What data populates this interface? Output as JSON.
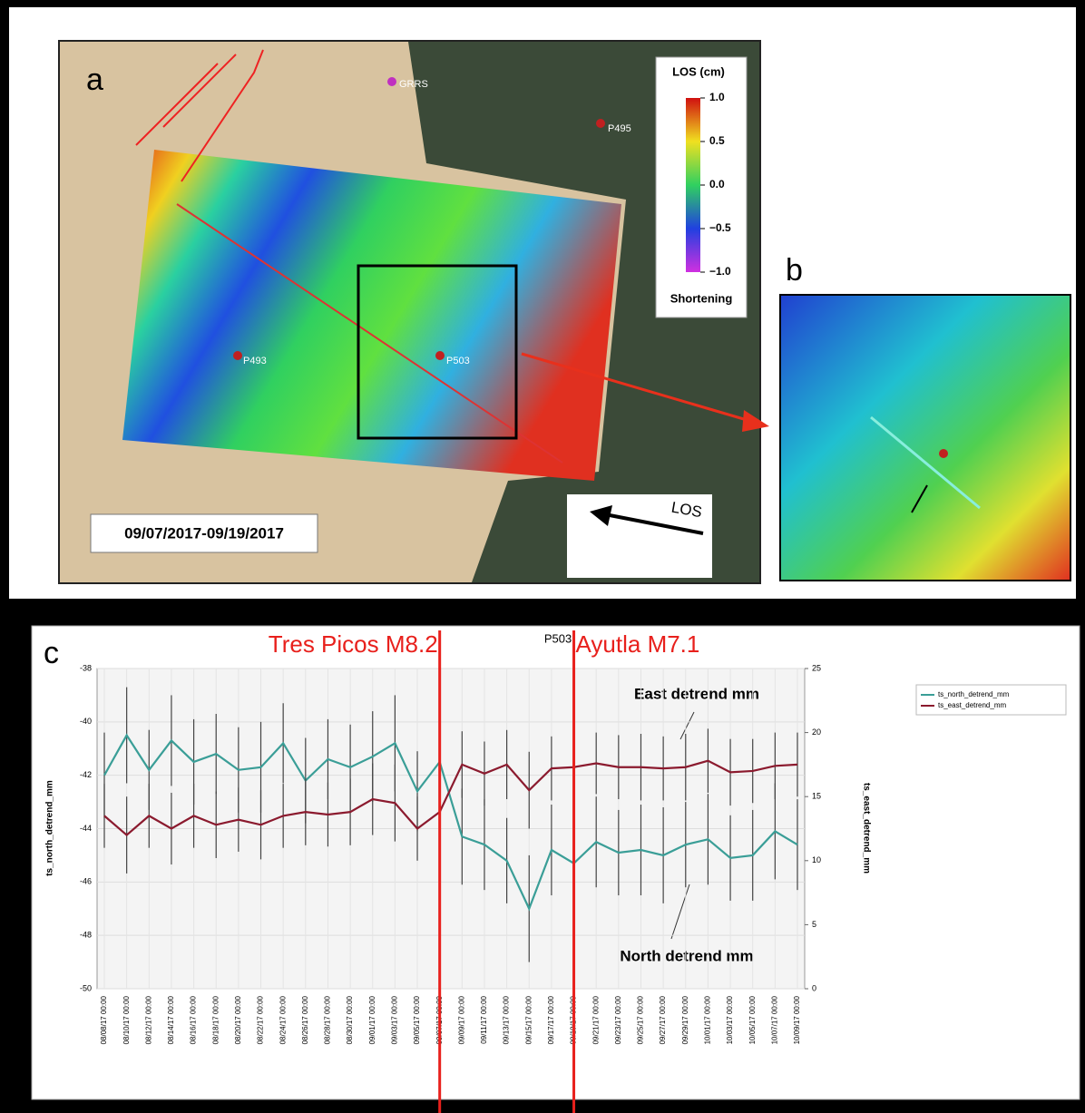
{
  "panel_a": {
    "label": "a",
    "colorbar": {
      "title": "LOS (cm)",
      "lim": [
        -1,
        1
      ],
      "ticks": [
        {
          "value": 1,
          "label": "1.0"
        },
        {
          "value": 0.5,
          "label": "0.5"
        },
        {
          "value": 0,
          "label": "0.0"
        },
        {
          "value": -0.5,
          "label": "−0.5"
        },
        {
          "value": -1,
          "label": "−1.0"
        }
      ],
      "caption": "Shortening"
    },
    "stations": [
      "GRRS",
      "P495",
      "P493",
      "P503"
    ],
    "date_range": "09/07/2017-09/19/2017",
    "arrow_label": "LOS"
  },
  "panel_b": {
    "label": "b"
  },
  "chart_data": {
    "type": "line",
    "panel_label": "c",
    "title": "P503",
    "categories": [
      "08/08/17 00:00",
      "08/10/17 00:00",
      "08/12/17 00:00",
      "08/14/17 00:00",
      "08/16/17 00:00",
      "08/18/17 00:00",
      "08/20/17 00:00",
      "08/22/17 00:00",
      "08/24/17 00:00",
      "08/26/17 00:00",
      "08/28/17 00:00",
      "08/30/17 00:00",
      "09/01/17 00:00",
      "09/03/17 00:00",
      "09/05/17 00:00",
      "09/07/17 00:00",
      "09/09/17 00:00",
      "09/11/17 00:00",
      "09/13/17 00:00",
      "09/15/17 00:00",
      "09/17/17 00:00",
      "09/19/17 00:00",
      "09/21/17 00:00",
      "09/23/17 00:00",
      "09/25/17 00:00",
      "09/27/17 00:00",
      "09/29/17 00:00",
      "10/01/17 00:00",
      "10/03/17 00:00",
      "10/05/17 00:00",
      "10/07/17 00:00",
      "10/09/17 00:00"
    ],
    "ylabel": "ts_north_detrend_mm",
    "y2label": "ts_east_detrend_mm",
    "ylim": [
      -50,
      -38
    ],
    "yticks": [
      -50,
      -48,
      -46,
      -44,
      -42,
      -40,
      -38
    ],
    "y2lim": [
      0,
      25
    ],
    "y2ticks": [
      0,
      5,
      10,
      15,
      20,
      25
    ],
    "grid": true,
    "legend": "top-right",
    "series": [
      {
        "name": "ts_north_detrend_mm",
        "color": "#3a9e97",
        "values": [
          -42,
          -40.5,
          -41.8,
          -40.7,
          -41.5,
          -41.2,
          -41.8,
          -41.7,
          -40.8,
          -42.2,
          -41.4,
          -41.7,
          -41.3,
          -40.8,
          -42.6,
          -41.5,
          -44.3,
          -44.6,
          -45.2,
          -47,
          -44.8,
          -45.3,
          -44.5,
          -44.9,
          -44.8,
          -45,
          -44.6,
          -44.4,
          -45.1,
          -45,
          -44.1,
          -44.6
        ],
        "errors": [
          1.6,
          1.8,
          1.5,
          1.7,
          1.6,
          1.5,
          1.6,
          1.7,
          1.5,
          1.6,
          1.5,
          1.6,
          1.7,
          1.8,
          1.5,
          1.7,
          1.8,
          1.7,
          1.6,
          2,
          1.7,
          1.6,
          1.7,
          1.6,
          1.7,
          1.8,
          1.6,
          1.7,
          1.6,
          1.7,
          1.8,
          1.7
        ]
      },
      {
        "name": "ts_east_detrend_mm",
        "color": "#8b1a2e",
        "axis": "y2",
        "values": [
          13.5,
          12,
          13.5,
          12.5,
          13.5,
          12.8,
          13.2,
          12.8,
          13.5,
          13.8,
          13.6,
          13.8,
          14.8,
          14.5,
          12.5,
          13.8,
          17.5,
          16.8,
          17.5,
          15.5,
          17.2,
          17.3,
          17.6,
          17.3,
          17.3,
          17.2,
          17.3,
          17.8,
          16.9,
          17,
          17.4,
          17.5
        ],
        "errors": [
          2.5,
          3,
          2.5,
          2.8,
          2.5,
          2.6,
          2.5,
          2.7,
          2.5,
          2.6,
          2.5,
          2.6,
          2.8,
          3,
          2.5,
          2.7,
          2.6,
          2.5,
          2.7,
          3,
          2.5,
          2.6,
          2.4,
          2.5,
          2.6,
          2.5,
          2.6,
          2.5,
          2.6,
          2.5,
          2.6,
          2.5
        ]
      }
    ],
    "events": [
      {
        "label": "Tres Picos M8.2",
        "x": "09/07/17 00:00"
      },
      {
        "label": "Ayutla M7.1",
        "x": "09/19/17 00:00"
      }
    ],
    "annotations": [
      "East detrend mm",
      "North detrend mm"
    ]
  }
}
